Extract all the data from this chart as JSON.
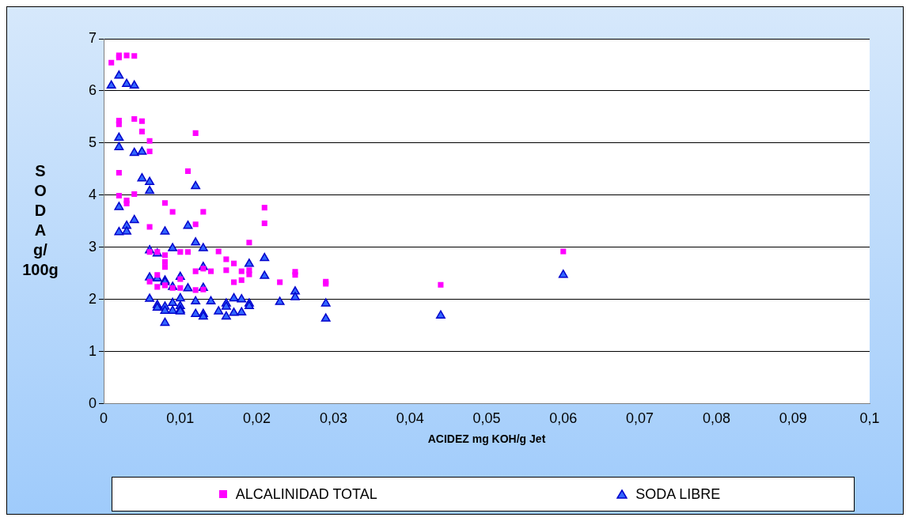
{
  "chart_data": {
    "type": "scatter",
    "xlabel": "ACIDEZ mg KOH/g Jet",
    "ylabel": "SODA g/100g",
    "xlim": [
      0,
      0.1
    ],
    "xticks": [
      0,
      {
        "value": 0.01,
        "label": "0,01"
      },
      {
        "value": 0.02,
        "label": "0,02"
      },
      {
        "value": 0.03,
        "label": "0,03"
      },
      {
        "value": 0.04,
        "label": "0,04"
      },
      {
        "value": 0.05,
        "label": "0,05"
      },
      {
        "value": 0.06,
        "label": "0,06"
      },
      {
        "value": 0.07,
        "label": "0,07"
      },
      {
        "value": 0.08,
        "label": "0,08"
      },
      {
        "value": 0.09,
        "label": "0,09"
      },
      {
        "value": 0.1,
        "label": "0,1"
      }
    ],
    "ylim": [
      0,
      7
    ],
    "yticks": [
      0,
      1,
      2,
      3,
      4,
      5,
      6,
      7
    ],
    "grid": "y",
    "legend": "bottom",
    "series": [
      {
        "name": "ALCALINIDAD TOTAL",
        "color": "#ff00ff",
        "marker": "square",
        "x": [
          0.001,
          0.002,
          0.002,
          0.003,
          0.004,
          0.002,
          0.002,
          0.004,
          0.005,
          0.005,
          0.006,
          0.006,
          0.012,
          0.002,
          0.011,
          0.002,
          0.003,
          0.003,
          0.004,
          0.008,
          0.009,
          0.013,
          0.021,
          0.021,
          0.006,
          0.012,
          0.019,
          0.006,
          0.06,
          0.044,
          0.029,
          0.029,
          0.025,
          0.025,
          0.023,
          0.015,
          0.016,
          0.017,
          0.018,
          0.019,
          0.019,
          0.016,
          0.013,
          0.014,
          0.012,
          0.017,
          0.018,
          0.007,
          0.008,
          0.008,
          0.008,
          0.01,
          0.011,
          0.006,
          0.007,
          0.008,
          0.009,
          0.01,
          0.012,
          0.013,
          0.007,
          0.01
        ],
        "values": [
          6.54,
          6.64,
          6.68,
          6.68,
          6.67,
          5.43,
          5.36,
          5.46,
          5.42,
          5.22,
          5.04,
          4.84,
          5.19,
          4.43,
          4.46,
          3.99,
          3.9,
          3.84,
          4.02,
          3.85,
          3.68,
          3.68,
          3.76,
          3.46,
          3.39,
          3.44,
          3.09,
          2.91,
          2.92,
          2.28,
          2.34,
          2.3,
          2.53,
          2.47,
          2.33,
          2.92,
          2.77,
          2.69,
          2.54,
          2.48,
          2.56,
          2.56,
          2.59,
          2.54,
          2.54,
          2.33,
          2.37,
          2.91,
          2.85,
          2.72,
          2.62,
          2.91,
          2.91,
          2.34,
          2.24,
          2.27,
          2.22,
          2.22,
          2.18,
          2.19,
          2.47,
          2.39
        ]
      },
      {
        "name": "SODA LIBRE",
        "color": "#3366ff",
        "marker": "triangle",
        "x": [
          0.001,
          0.002,
          0.003,
          0.004,
          0.002,
          0.002,
          0.004,
          0.005,
          0.005,
          0.006,
          0.006,
          0.012,
          0.002,
          0.004,
          0.003,
          0.003,
          0.002,
          0.008,
          0.011,
          0.012,
          0.009,
          0.013,
          0.013,
          0.019,
          0.021,
          0.021,
          0.006,
          0.007,
          0.006,
          0.007,
          0.008,
          0.008,
          0.01,
          0.013,
          0.009,
          0.011,
          0.006,
          0.007,
          0.007,
          0.008,
          0.009,
          0.01,
          0.009,
          0.008,
          0.01,
          0.01,
          0.012,
          0.013,
          0.013,
          0.012,
          0.014,
          0.015,
          0.016,
          0.016,
          0.016,
          0.017,
          0.017,
          0.018,
          0.018,
          0.019,
          0.019,
          0.008,
          0.023,
          0.025,
          0.025,
          0.029,
          0.029,
          0.044,
          0.06,
          0.01
        ],
        "values": [
          6.1,
          6.29,
          6.13,
          6.1,
          5.1,
          4.92,
          4.81,
          4.83,
          4.32,
          4.25,
          4.08,
          4.17,
          3.77,
          3.52,
          3.41,
          3.3,
          3.29,
          3.3,
          3.41,
          3.09,
          2.98,
          2.98,
          2.62,
          2.68,
          2.79,
          2.45,
          2.94,
          2.88,
          2.42,
          2.4,
          2.36,
          2.33,
          2.43,
          2.22,
          2.24,
          2.21,
          2.01,
          1.89,
          1.84,
          1.86,
          1.93,
          1.87,
          1.78,
          1.78,
          1.8,
          1.77,
          1.96,
          1.72,
          1.67,
          1.72,
          1.96,
          1.77,
          1.92,
          1.86,
          1.67,
          2.02,
          1.74,
          2,
          1.75,
          1.92,
          1.87,
          1.55,
          1.95,
          2.15,
          2.04,
          1.92,
          1.63,
          1.69,
          2.47,
          2.02
        ]
      }
    ]
  }
}
